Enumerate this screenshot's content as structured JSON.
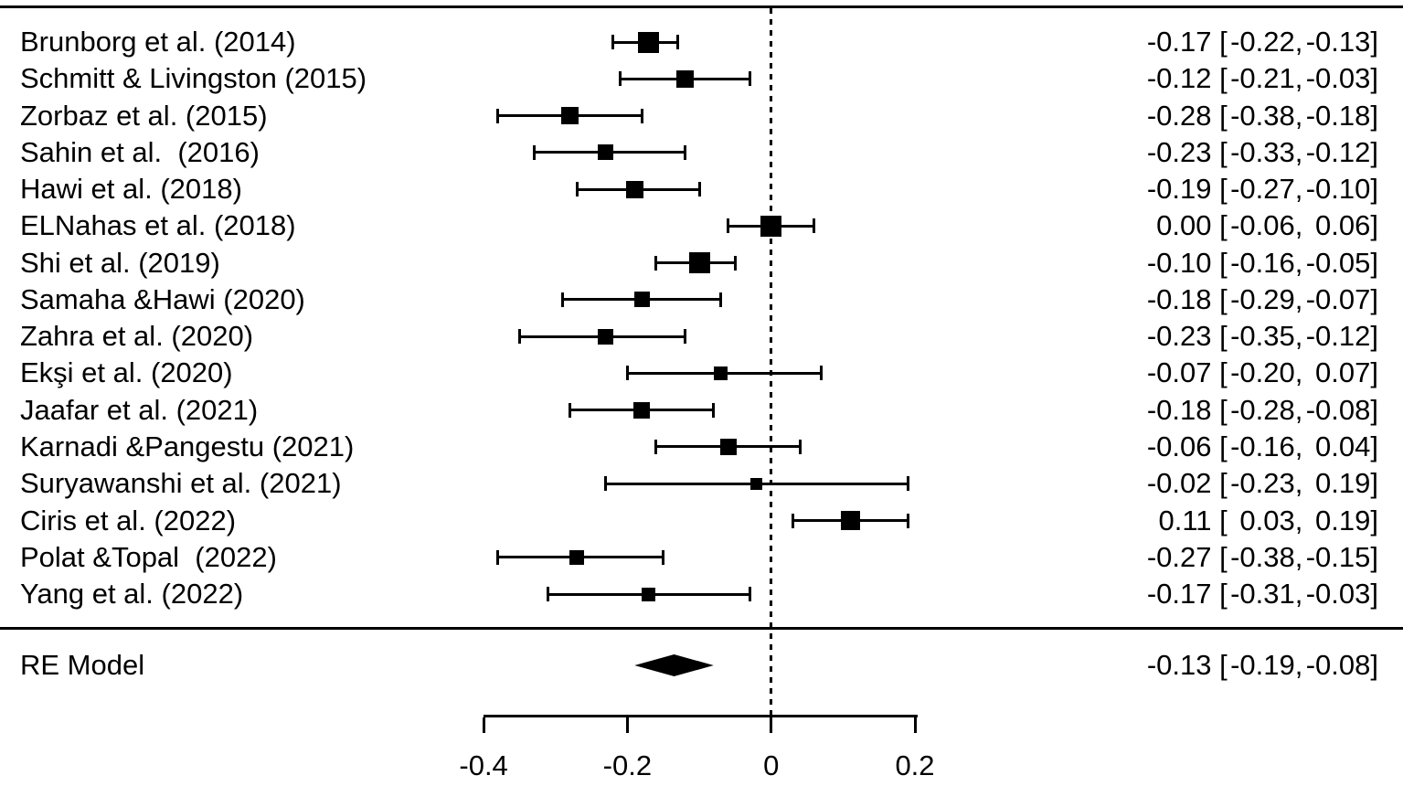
{
  "colors": {
    "foreground": "#000000",
    "background": "#ffffff"
  },
  "chart_data": {
    "type": "forest",
    "title": "",
    "xlabel": "",
    "x_axis": {
      "ticks": [
        -0.4,
        -0.2,
        0,
        0.2
      ],
      "tick_labels": [
        "-0.4",
        "-0.2",
        "0",
        "0.2"
      ]
    },
    "reference_line_value": 0,
    "value_format": "estimate [lower, upper]",
    "studies": [
      {
        "label": "Brunborg et al. (2014)",
        "est": "-0.17",
        "lo": "-0.22",
        "hi": "-0.13",
        "size": 23
      },
      {
        "label": "Schmitt & Livingston (2015)",
        "est": "-0.12",
        "lo": "-0.21",
        "hi": "-0.03",
        "size": 19
      },
      {
        "label": "Zorbaz et al. (2015)",
        "est": "-0.28",
        "lo": "-0.38",
        "hi": "-0.18",
        "size": 19
      },
      {
        "label": "Sahin et al.  (2016)",
        "est": "-0.23",
        "lo": "-0.33",
        "hi": "-0.12",
        "size": 17
      },
      {
        "label": "Hawi et al. (2018)",
        "est": "-0.19",
        "lo": "-0.27",
        "hi": "-0.10",
        "size": 19
      },
      {
        "label": "ELNahas et al. (2018)",
        "est": "0.00",
        "lo": "-0.06",
        "hi": "0.06",
        "size": 23
      },
      {
        "label": "Shi et al. (2019)",
        "est": "-0.10",
        "lo": "-0.16",
        "hi": "-0.05",
        "size": 23
      },
      {
        "label": "Samaha &Hawi (2020)",
        "est": "-0.18",
        "lo": "-0.29",
        "hi": "-0.07",
        "size": 17
      },
      {
        "label": "Zahra et al. (2020)",
        "est": "-0.23",
        "lo": "-0.35",
        "hi": "-0.12",
        "size": 17
      },
      {
        "label": "Ekşi et al. (2020)",
        "est": "-0.07",
        "lo": "-0.20",
        "hi": "0.07",
        "size": 15
      },
      {
        "label": "Jaafar et al. (2021)",
        "est": "-0.18",
        "lo": "-0.28",
        "hi": "-0.08",
        "size": 18
      },
      {
        "label": "Karnadi &Pangestu (2021)",
        "est": "-0.06",
        "lo": "-0.16",
        "hi": "0.04",
        "size": 18
      },
      {
        "label": "Suryawanshi et al. (2021)",
        "est": "-0.02",
        "lo": "-0.23",
        "hi": "0.19",
        "size": 13
      },
      {
        "label": "Ciris et al. (2022)",
        "est": "0.11",
        "lo": "0.03",
        "hi": "0.19",
        "size": 21
      },
      {
        "label": "Polat &Topal  (2022)",
        "est": "-0.27",
        "lo": "-0.38",
        "hi": "-0.15",
        "size": 16
      },
      {
        "label": "Yang et al. (2022)",
        "est": "-0.17",
        "lo": "-0.31",
        "hi": "-0.03",
        "size": 15
      }
    ],
    "summary": {
      "label": "RE Model",
      "est": "-0.13",
      "lo": "-0.19",
      "hi": "-0.08"
    }
  }
}
